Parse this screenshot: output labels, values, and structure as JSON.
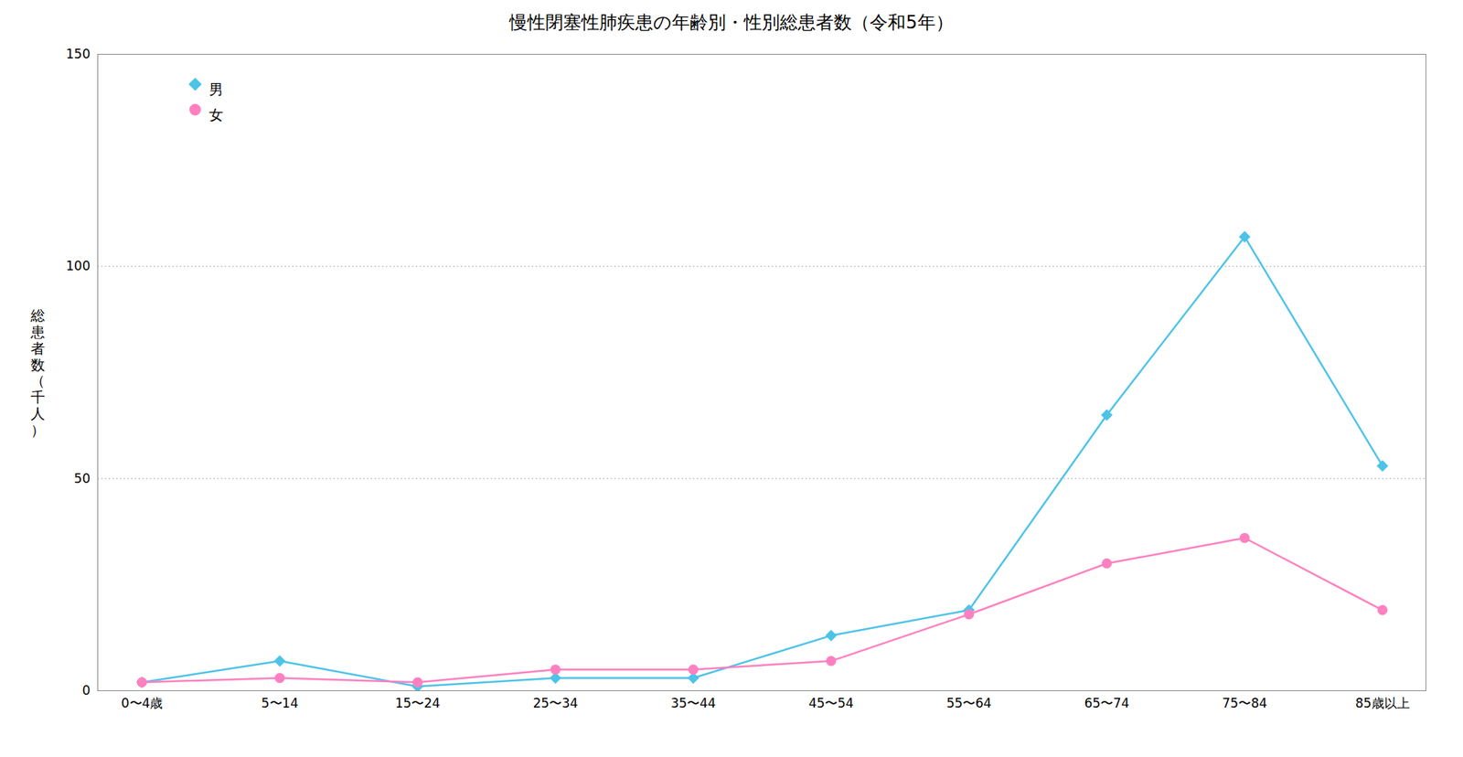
{
  "chart_data": {
    "type": "line",
    "title": "慢性閉塞性肺疾患の年齢別・性別総患者数（令和5年）",
    "categories": [
      "0〜4歳",
      "5〜14",
      "15〜24",
      "25〜34",
      "35〜44",
      "45〜54",
      "55〜64",
      "65〜74",
      "75〜84",
      "85歳以上"
    ],
    "series": [
      {
        "name": "男",
        "color": "#4DC3E8",
        "marker": "diamond",
        "values": [
          2,
          7,
          1,
          3,
          3,
          13,
          19,
          65,
          107,
          53
        ]
      },
      {
        "name": "女",
        "color": "#FF80C0",
        "marker": "circle",
        "values": [
          2,
          3,
          2,
          5,
          5,
          7,
          18,
          30,
          36,
          19
        ]
      }
    ],
    "ylabel": "総\n患\n者\n数\n（\n千\n人\n）",
    "ylim": [
      0,
      150
    ],
    "yticks": [
      0,
      50,
      100,
      150
    ],
    "grid": true,
    "legend": "upper left"
  }
}
